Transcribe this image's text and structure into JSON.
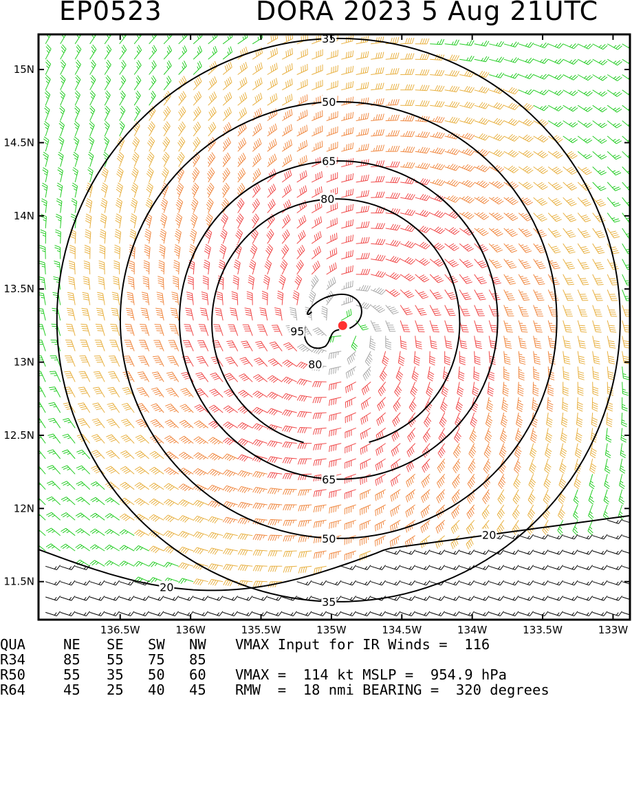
{
  "title": {
    "left": "EP0523",
    "right": "DORA 2023  5 Aug 21UTC"
  },
  "chart_data": {
    "type": "wind-barb-contour-map",
    "storm_id": "EP0523",
    "storm_name": "DORA",
    "year": "2023",
    "datetime": "5 Aug 21UTC",
    "x_axis": {
      "range": [
        -137.08,
        -132.88
      ],
      "ticks": [
        -136.5,
        -136,
        -135.5,
        -135,
        -134.5,
        -134,
        -133.5,
        -133
      ],
      "tick_labels": [
        "136.5W",
        "136W",
        "135.5W",
        "135W",
        "134.5W",
        "134W",
        "133.5W",
        "133W"
      ]
    },
    "y_axis": {
      "range": [
        11.24,
        15.24
      ],
      "ticks": [
        11.5,
        12,
        12.5,
        13,
        13.5,
        14,
        14.5,
        15
      ],
      "tick_labels": [
        "11.5N",
        "12N",
        "12.5N",
        "13N",
        "13.5N",
        "14N",
        "14.5N",
        "15N"
      ]
    },
    "storm_center": {
      "lon": -134.92,
      "lat": 13.25
    },
    "wind_contours_kt": [
      {
        "level": 35,
        "label": "35"
      },
      {
        "level": 50,
        "label": "50"
      },
      {
        "level": 65,
        "label": "65"
      },
      {
        "level": 80,
        "label": "80"
      },
      {
        "level": 95,
        "label": "95"
      },
      {
        "level": 20,
        "label": "20"
      }
    ],
    "barb_colors": {
      "below_20": "#000000",
      "20_to_34": "#22cc22",
      "34_to_50": "#e8b040",
      "50_to_64": "#f08840",
      "64_to_96": "#f04848",
      "above_96": "#a8a8a8"
    },
    "center_color": "#ff3030"
  },
  "stats": {
    "header": [
      "QUA",
      "NE",
      "SE",
      "SW",
      "NW"
    ],
    "rows": [
      [
        "R34",
        "85",
        "55",
        "75",
        "85"
      ],
      [
        "R50",
        "55",
        "35",
        "50",
        "60"
      ],
      [
        "R64",
        "45",
        "25",
        "40",
        "45"
      ]
    ],
    "line1": "VMAX Input for IR Winds =  116",
    "line2": "VMAX =  114 kt MSLP =  954.9 hPa",
    "line3": "RMW  =  18 nmi BEARING =  320 degrees"
  }
}
